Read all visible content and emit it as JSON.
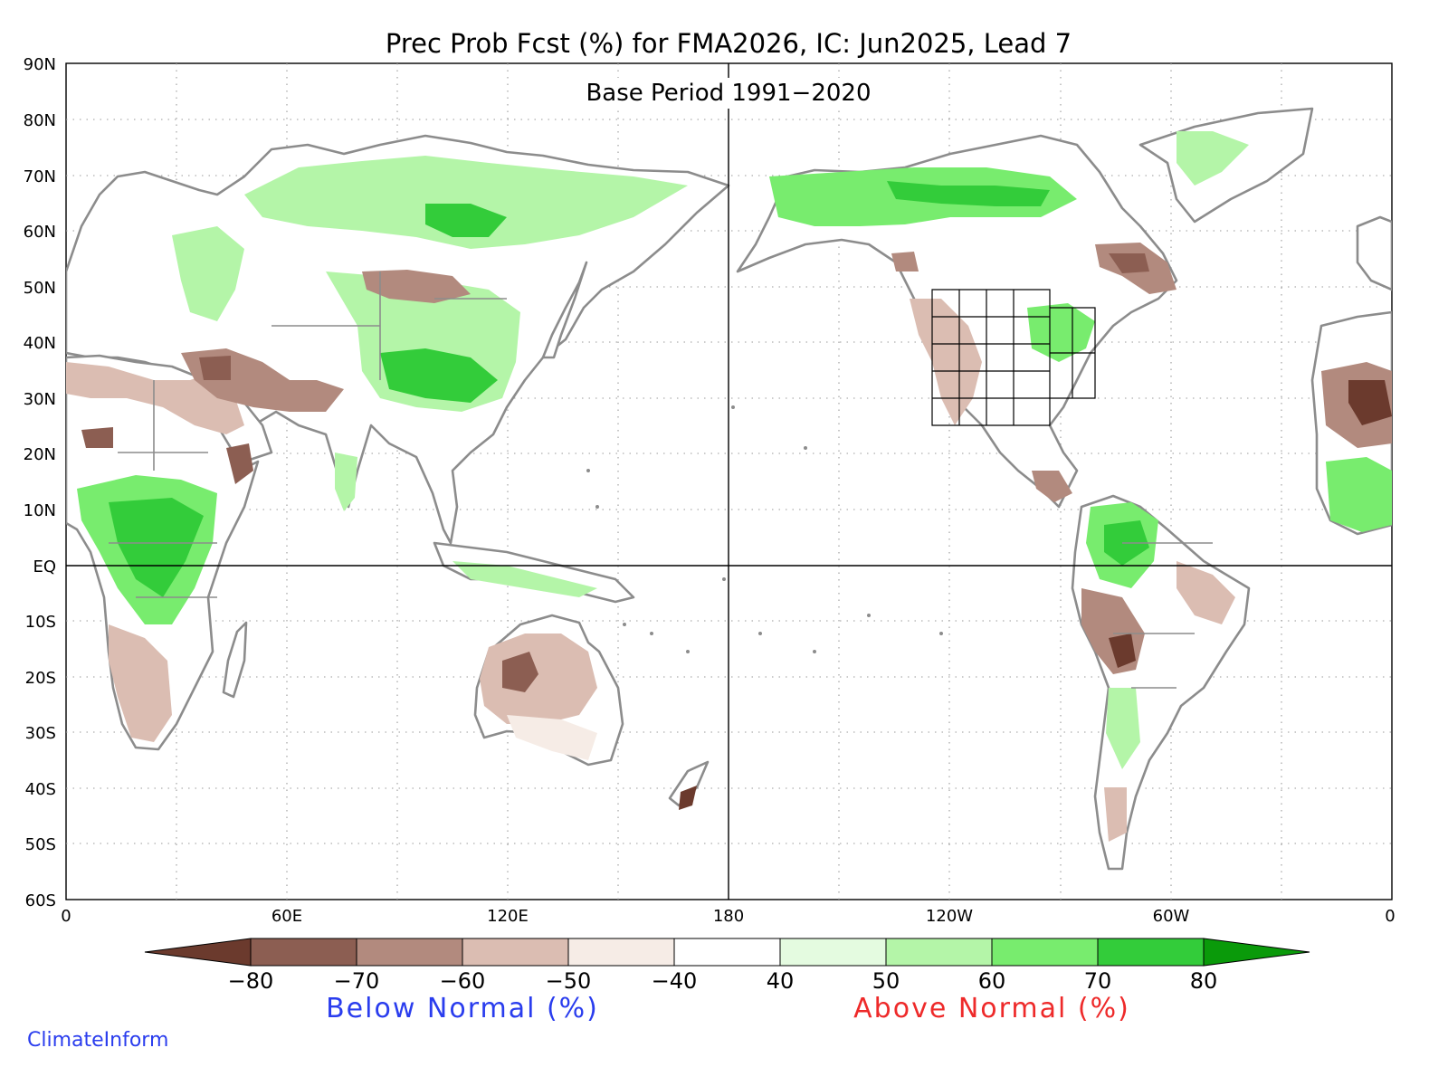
{
  "title": "Prec Prob Fcst (%) for FMA2026, IC: Jun2025, Lead 7",
  "subtitle": "Base Period 1991−2020",
  "lat_labels": [
    "90N",
    "80N",
    "70N",
    "60N",
    "50N",
    "40N",
    "30N",
    "20N",
    "10N",
    "EQ",
    "10S",
    "20S",
    "30S",
    "40S",
    "50S",
    "60S"
  ],
  "lon_labels": [
    "0",
    "60E",
    "120E",
    "180",
    "120W",
    "60W",
    "0"
  ],
  "colorbar": {
    "tick_labels": [
      "−80",
      "−70",
      "−60",
      "−50",
      "−40",
      "40",
      "50",
      "60",
      "70",
      "80"
    ],
    "below_label": "Below Normal (%)",
    "above_label": "Above Normal (%)",
    "colors": [
      "#6b3a2d",
      "#8c5e52",
      "#b28a7e",
      "#dbbdb2",
      "#f6ece6",
      "#ffffff",
      "#e4fbe0",
      "#b4f5a8",
      "#78ec6e",
      "#33cc3a",
      "#0a9a0a"
    ]
  },
  "credit": "ClimateInform",
  "colors": {
    "land_outline": "#8c8c8c",
    "grid": "#9a9a9a",
    "below_label": "#2a3dee",
    "above_label": "#ee2a2a",
    "credit": "#2a3dee"
  }
}
